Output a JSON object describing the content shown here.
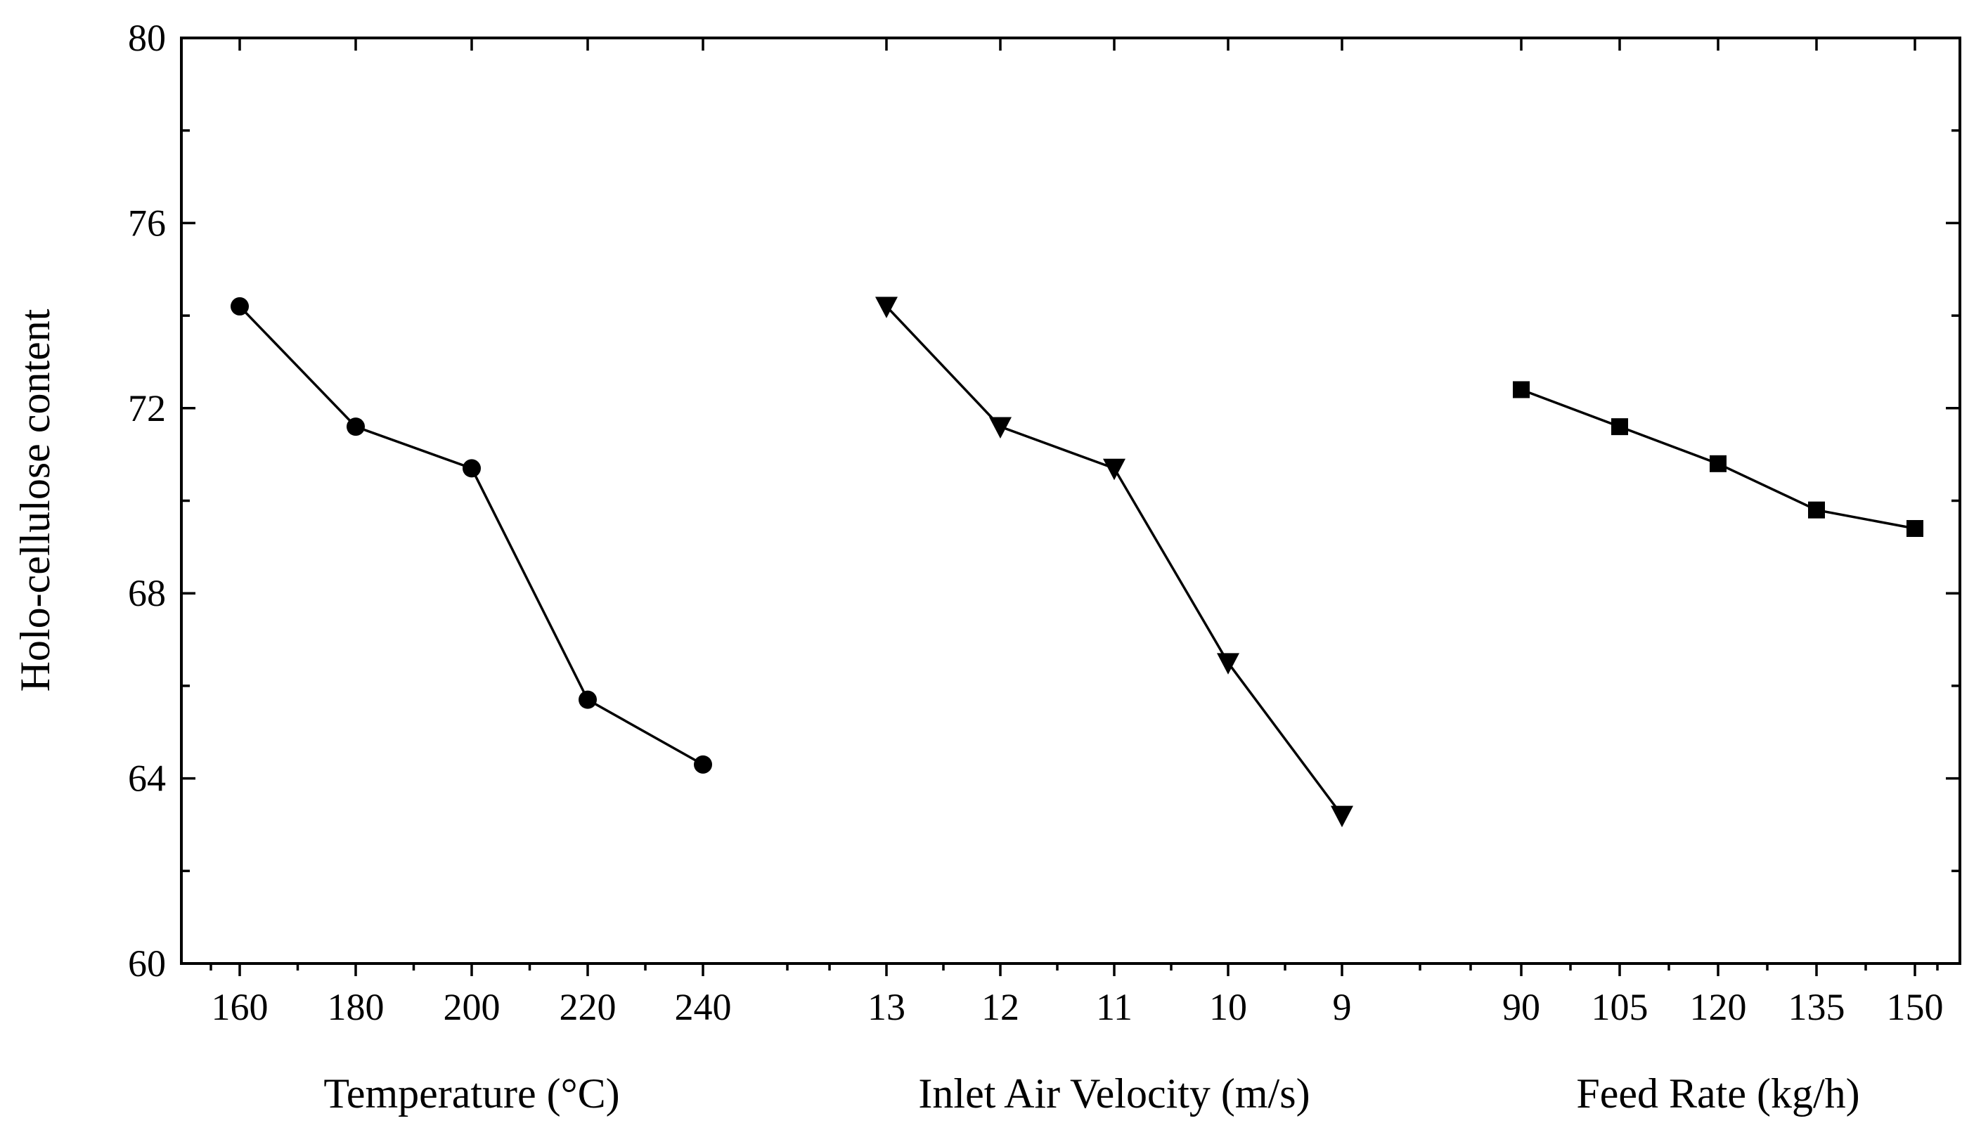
{
  "chart_data": {
    "type": "line",
    "ylabel": "Holo-cellulose content",
    "ylim": [
      60,
      80
    ],
    "yticks": [
      60,
      64,
      68,
      72,
      76,
      80
    ],
    "grid": false,
    "panels": [
      {
        "name": "temperature",
        "xlabel": "Temperature (°C)",
        "x": [
          "160",
          "180",
          "200",
          "220",
          "240"
        ],
        "values": [
          74.2,
          71.6,
          70.7,
          65.7,
          64.3
        ],
        "marker": "circle"
      },
      {
        "name": "inlet-air-velocity",
        "xlabel": "Inlet Air Velocity (m/s)",
        "x": [
          "13",
          "12",
          "11",
          "10",
          "9"
        ],
        "values": [
          74.2,
          71.6,
          70.7,
          66.5,
          63.2
        ],
        "marker": "triangle-down"
      },
      {
        "name": "feed-rate",
        "xlabel": "Feed Rate (kg/h)",
        "x": [
          "90",
          "105",
          "120",
          "135",
          "150"
        ],
        "values": [
          72.4,
          71.6,
          70.8,
          69.8,
          69.4
        ],
        "marker": "square"
      }
    ]
  }
}
